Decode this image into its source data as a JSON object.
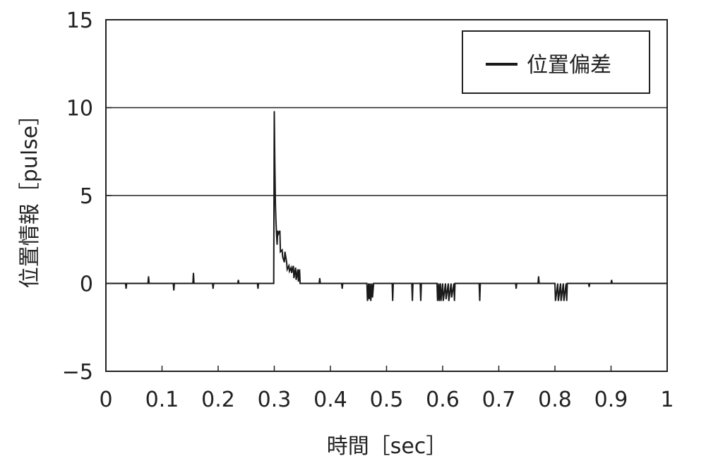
{
  "chart_data": {
    "type": "line",
    "xlabel": "時間［sec］",
    "ylabel": "位置情報［pulse］",
    "xlim": [
      0,
      1
    ],
    "ylim": [
      -5,
      15
    ],
    "x_ticks": [
      0,
      0.1,
      0.2,
      0.3,
      0.4,
      0.5,
      0.6,
      0.7,
      0.8,
      0.9,
      1
    ],
    "x_tick_labels": [
      "0",
      "0.1",
      "0.2",
      "0.3",
      "0.4",
      "0.5",
      "0.6",
      "0.7",
      "0.8",
      "0.9",
      "1"
    ],
    "y_ticks": [
      -5,
      0,
      5,
      10,
      15
    ],
    "y_tick_labels": [
      "−5",
      "0",
      "5",
      "10",
      "15"
    ],
    "horizontal_gridlines": [
      5,
      10
    ],
    "legend": {
      "position": "top-right",
      "entries": [
        "位置偏差"
      ]
    },
    "series": [
      {
        "name": "位置偏差",
        "color": "#1a1a1a",
        "x": [
          0,
          0.035,
          0.036,
          0.037,
          0.075,
          0.076,
          0.077,
          0.12,
          0.121,
          0.122,
          0.155,
          0.156,
          0.157,
          0.19,
          0.191,
          0.192,
          0.235,
          0.236,
          0.237,
          0.27,
          0.271,
          0.272,
          0.299,
          0.3,
          0.301,
          0.302,
          0.303,
          0.304,
          0.305,
          0.306,
          0.307,
          0.31,
          0.311,
          0.314,
          0.315,
          0.318,
          0.319,
          0.322,
          0.323,
          0.326,
          0.327,
          0.33,
          0.331,
          0.334,
          0.335,
          0.338,
          0.339,
          0.342,
          0.343,
          0.345,
          0.346,
          0.38,
          0.381,
          0.382,
          0.42,
          0.421,
          0.422,
          0.465,
          0.466,
          0.468,
          0.469,
          0.471,
          0.472,
          0.474,
          0.475,
          0.477,
          0.478,
          0.51,
          0.511,
          0.512,
          0.545,
          0.546,
          0.547,
          0.56,
          0.561,
          0.562,
          0.59,
          0.591,
          0.593,
          0.594,
          0.596,
          0.597,
          0.6,
          0.601,
          0.605,
          0.606,
          0.61,
          0.611,
          0.615,
          0.616,
          0.62,
          0.621,
          0.622,
          0.665,
          0.666,
          0.667,
          0.73,
          0.731,
          0.732,
          0.77,
          0.771,
          0.772,
          0.8,
          0.801,
          0.805,
          0.806,
          0.81,
          0.811,
          0.815,
          0.816,
          0.82,
          0.821,
          0.822,
          0.86,
          0.861,
          0.862,
          0.9,
          0.901,
          0.902,
          0.94,
          0.95,
          1
        ],
        "y": [
          0,
          0,
          -0.3,
          0,
          0,
          0.4,
          0,
          0,
          -0.4,
          0,
          0,
          0.6,
          0,
          0,
          -0.3,
          0,
          0,
          0.2,
          0,
          0,
          -0.3,
          0,
          0,
          9.8,
          6.8,
          4.5,
          3.5,
          2.8,
          2.2,
          3.0,
          2.8,
          3.0,
          1.8,
          1.9,
          1.5,
          1.2,
          1.8,
          1.2,
          0.8,
          1.0,
          0.7,
          0.9,
          0.6,
          1.0,
          0.3,
          0.9,
          0.2,
          0.8,
          0.1,
          0.8,
          0,
          0,
          0.3,
          0,
          0,
          -0.3,
          0,
          0,
          -1.0,
          0,
          -0.9,
          0,
          -1.0,
          0,
          -0.8,
          0,
          0,
          0,
          -1.0,
          0,
          0,
          -1.0,
          0,
          0,
          -1.0,
          0,
          0,
          -1.0,
          0,
          -1.0,
          0,
          -1.0,
          0,
          -1.0,
          0,
          -0.9,
          0,
          -1.0,
          0,
          -0.8,
          0,
          -1.0,
          0,
          0,
          -1.0,
          0,
          0,
          -0.3,
          0,
          0,
          0.4,
          0,
          0,
          -1.0,
          0,
          -1.0,
          0,
          -1.0,
          0,
          -1.0,
          0,
          -1.0,
          0,
          0,
          -0.2,
          0,
          0,
          0.2,
          0,
          0,
          0,
          0
        ]
      }
    ]
  }
}
